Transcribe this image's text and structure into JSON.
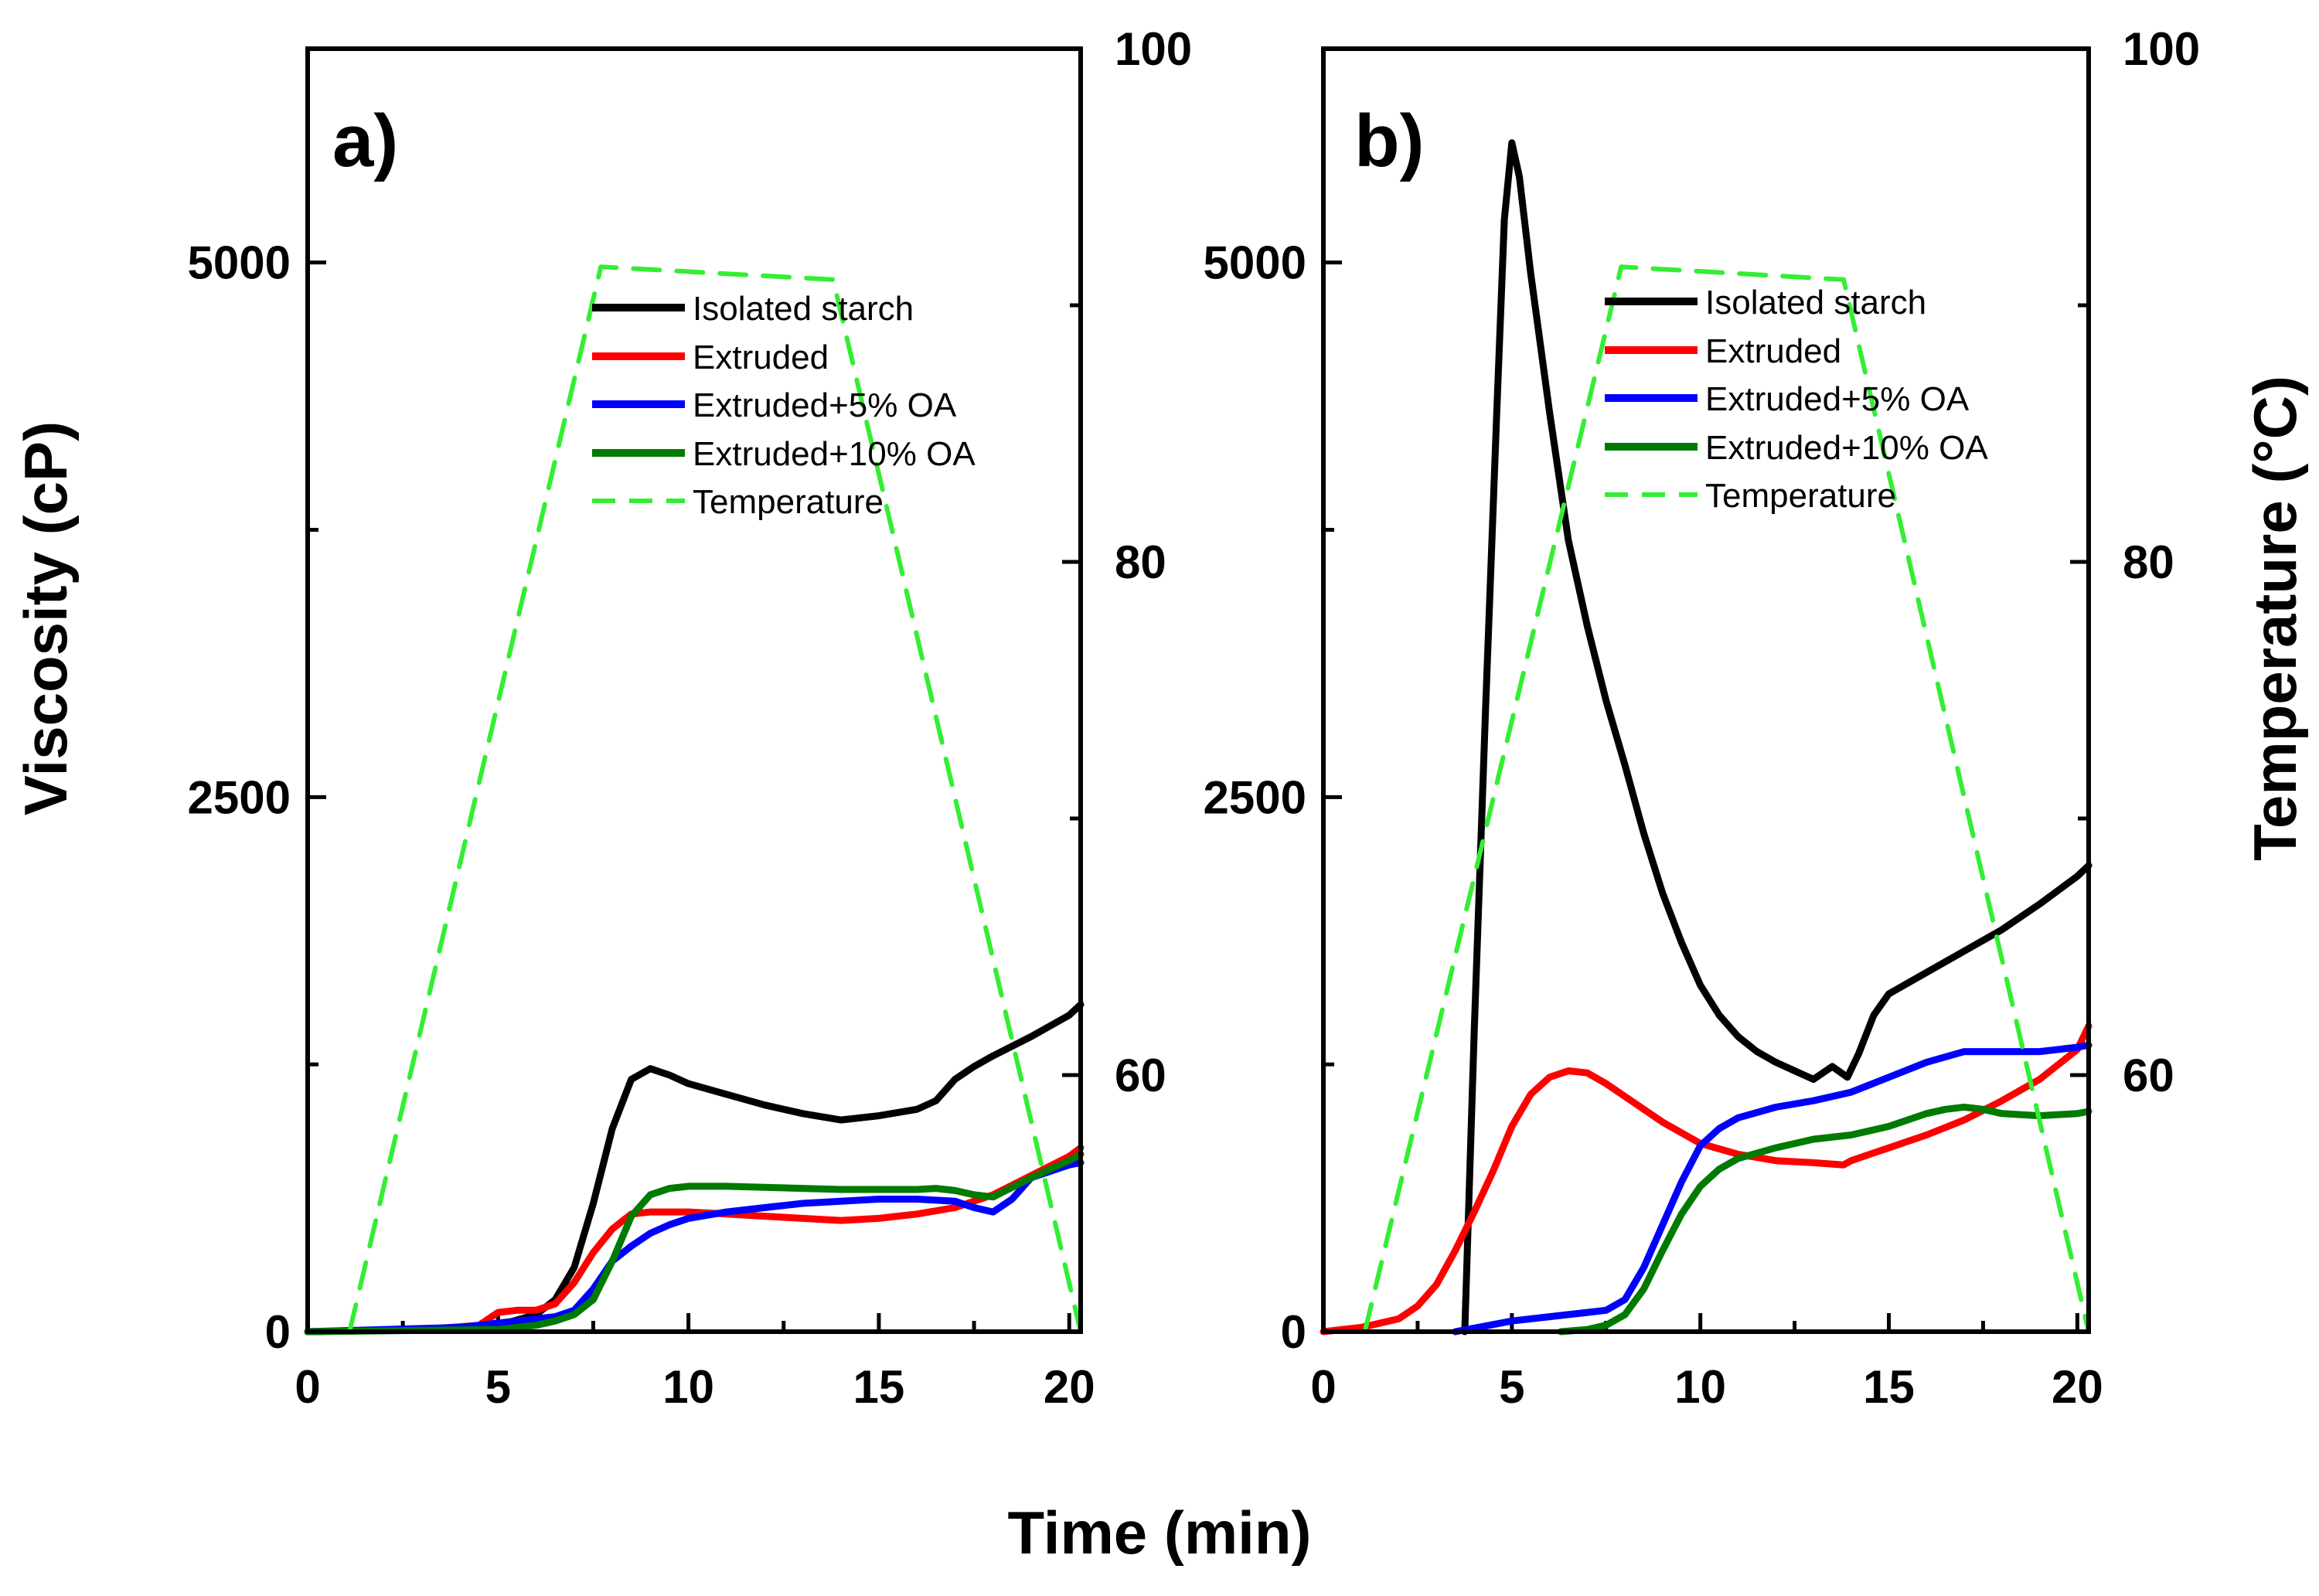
{
  "figure": {
    "shared_xlabel": "Time (min)",
    "shared_ylabel": "Viscosity (cP)",
    "shared_y2label": "Temperature (°C)"
  },
  "legend": {
    "isolated": "Isolated starch",
    "extruded": "Extruded",
    "oa5": "Extruded+5% OA",
    "oa10": "Extruded+10% OA",
    "temperature": "Temperature"
  },
  "colors": {
    "isolated": "#000000",
    "extruded": "#ff0000",
    "oa5": "#0000ff",
    "oa10": "#007a00",
    "temperature": "#33ee33"
  },
  "chart_data": [
    {
      "type": "line",
      "panel": "a)",
      "xlabel": "Time (min)",
      "ylabel": "Viscosity (cP)",
      "y2label": "Temperature (°C)",
      "xlim": [
        0,
        20.3
      ],
      "ylim": [
        0,
        6000
      ],
      "y2lim": [
        50,
        100
      ],
      "xticks": [
        "0",
        "5",
        "10",
        "15",
        "20"
      ],
      "yticks": [
        "0",
        "2500",
        "5000"
      ],
      "y2ticks": [
        "60",
        "80",
        "100"
      ],
      "series": [
        {
          "name": "Isolated starch",
          "key": "isolated",
          "axis": "left",
          "x": [
            0,
            2,
            4,
            5,
            6,
            6.5,
            7,
            7.5,
            8,
            8.5,
            9,
            9.5,
            10,
            11,
            12,
            13,
            14,
            15,
            16,
            16.5,
            17,
            17.5,
            18,
            19,
            20,
            20.3
          ],
          "y": [
            0,
            5,
            15,
            30,
            80,
            150,
            300,
            600,
            950,
            1180,
            1230,
            1200,
            1160,
            1110,
            1060,
            1020,
            990,
            1010,
            1040,
            1080,
            1180,
            1240,
            1290,
            1380,
            1480,
            1530
          ]
        },
        {
          "name": "Extruded",
          "key": "extruded",
          "axis": "left",
          "x": [
            0,
            3,
            4.5,
            5,
            5.5,
            6,
            6.5,
            7,
            7.5,
            8,
            8.5,
            9,
            10,
            11,
            12,
            13,
            14,
            15,
            16,
            17,
            18,
            19,
            20,
            20.3
          ],
          "y": [
            0,
            10,
            30,
            90,
            100,
            100,
            130,
            230,
            370,
            480,
            550,
            560,
            560,
            550,
            540,
            530,
            520,
            530,
            550,
            580,
            640,
            730,
            820,
            860
          ]
        },
        {
          "name": "Extruded+5% OA",
          "key": "oa5",
          "axis": "left",
          "x": [
            0,
            4,
            5,
            6,
            6.5,
            7,
            7.5,
            8,
            8.5,
            9,
            9.5,
            10,
            11,
            12,
            13,
            14,
            15,
            16,
            17,
            17.5,
            18,
            18.5,
            19,
            20,
            20.3
          ],
          "y": [
            0,
            20,
            40,
            60,
            70,
            100,
            200,
            330,
            400,
            460,
            500,
            530,
            560,
            580,
            600,
            610,
            620,
            620,
            610,
            580,
            560,
            620,
            720,
            780,
            790
          ]
        },
        {
          "name": "Extruded+10% OA",
          "key": "oa10",
          "axis": "left",
          "x": [
            0,
            5,
            6,
            6.5,
            7,
            7.5,
            8,
            8.5,
            9,
            9.5,
            10,
            11,
            12,
            13,
            14,
            15,
            16,
            16.5,
            17,
            17.5,
            18,
            19,
            20,
            20.3
          ],
          "y": [
            0,
            10,
            30,
            50,
            80,
            150,
            330,
            540,
            640,
            670,
            680,
            680,
            675,
            670,
            665,
            665,
            665,
            670,
            660,
            640,
            630,
            720,
            800,
            830
          ]
        },
        {
          "name": "Temperature",
          "key": "temperature",
          "axis": "right",
          "dashed": true,
          "x": [
            0,
            1.1,
            7.7,
            13.8,
            20.3
          ],
          "y": [
            50,
            50,
            91.5,
            91,
            50
          ]
        }
      ]
    },
    {
      "type": "line",
      "panel": "b)",
      "xlabel": "Time (min)",
      "ylabel": "Viscosity (cP)",
      "y2label": "Temperature (°C)",
      "xlim": [
        0,
        20.3
      ],
      "ylim": [
        0,
        6000
      ],
      "y2lim": [
        50,
        100
      ],
      "xticks": [
        "0",
        "5",
        "10",
        "15",
        "20"
      ],
      "yticks": [
        "0",
        "2500",
        "5000"
      ],
      "y2ticks": [
        "60",
        "80",
        "100"
      ],
      "series": [
        {
          "name": "Isolated starch",
          "key": "isolated",
          "axis": "left",
          "x": [
            3.75,
            4,
            4.3,
            4.6,
            4.8,
            5.0,
            5.2,
            5.5,
            6,
            6.5,
            7,
            7.5,
            8,
            8.5,
            9,
            9.5,
            10,
            10.5,
            11,
            11.5,
            12,
            12.5,
            13,
            13.5,
            13.9,
            14.2,
            14.6,
            15,
            16,
            17,
            18,
            19,
            20,
            20.3
          ],
          "y": [
            0,
            1400,
            2900,
            4300,
            5200,
            5560,
            5400,
            4950,
            4300,
            3700,
            3300,
            2950,
            2650,
            2330,
            2050,
            1820,
            1620,
            1480,
            1380,
            1310,
            1260,
            1220,
            1180,
            1240,
            1190,
            1300,
            1480,
            1580,
            1680,
            1780,
            1880,
            2000,
            2130,
            2180
          ]
        },
        {
          "name": "Extruded",
          "key": "extruded",
          "axis": "left",
          "x": [
            0,
            1,
            2,
            2.5,
            3,
            3.5,
            4,
            4.5,
            5,
            5.5,
            6,
            6.5,
            7,
            7.5,
            8,
            9,
            10,
            11,
            12,
            13,
            13.8,
            14,
            14.5,
            15,
            16,
            17,
            18,
            19,
            20,
            20.3
          ],
          "y": [
            0,
            20,
            60,
            120,
            220,
            380,
            560,
            750,
            960,
            1110,
            1190,
            1220,
            1210,
            1160,
            1100,
            980,
            880,
            830,
            800,
            790,
            780,
            800,
            830,
            860,
            920,
            990,
            1080,
            1180,
            1320,
            1430
          ]
        },
        {
          "name": "Extruded+5% OA",
          "key": "oa5",
          "axis": "left",
          "x": [
            3.5,
            5,
            6,
            6.5,
            7,
            7.5,
            8,
            8.5,
            9,
            9.5,
            10,
            10.5,
            11,
            12,
            13,
            14,
            15,
            16,
            17,
            18,
            19,
            20,
            20.3
          ],
          "y": [
            0,
            50,
            70,
            80,
            90,
            100,
            150,
            300,
            500,
            700,
            870,
            950,
            1000,
            1050,
            1080,
            1120,
            1190,
            1260,
            1310,
            1310,
            1310,
            1330,
            1340
          ]
        },
        {
          "name": "Extruded+10% OA",
          "key": "oa10",
          "axis": "left",
          "x": [
            6.3,
            7,
            7.5,
            8,
            8.5,
            9,
            9.5,
            10,
            10.5,
            11,
            12,
            13,
            14,
            15,
            16,
            16.5,
            17,
            17.5,
            18,
            19,
            20,
            20.3
          ],
          "y": [
            0,
            10,
            30,
            80,
            200,
            380,
            550,
            680,
            760,
            810,
            860,
            900,
            920,
            960,
            1020,
            1040,
            1050,
            1040,
            1020,
            1010,
            1020,
            1030
          ]
        },
        {
          "name": "Temperature",
          "key": "temperature",
          "axis": "right",
          "dashed": true,
          "x": [
            0,
            1.1,
            7.9,
            13.8,
            20.3
          ],
          "y": [
            50,
            50,
            91.5,
            91,
            50
          ]
        }
      ]
    }
  ]
}
